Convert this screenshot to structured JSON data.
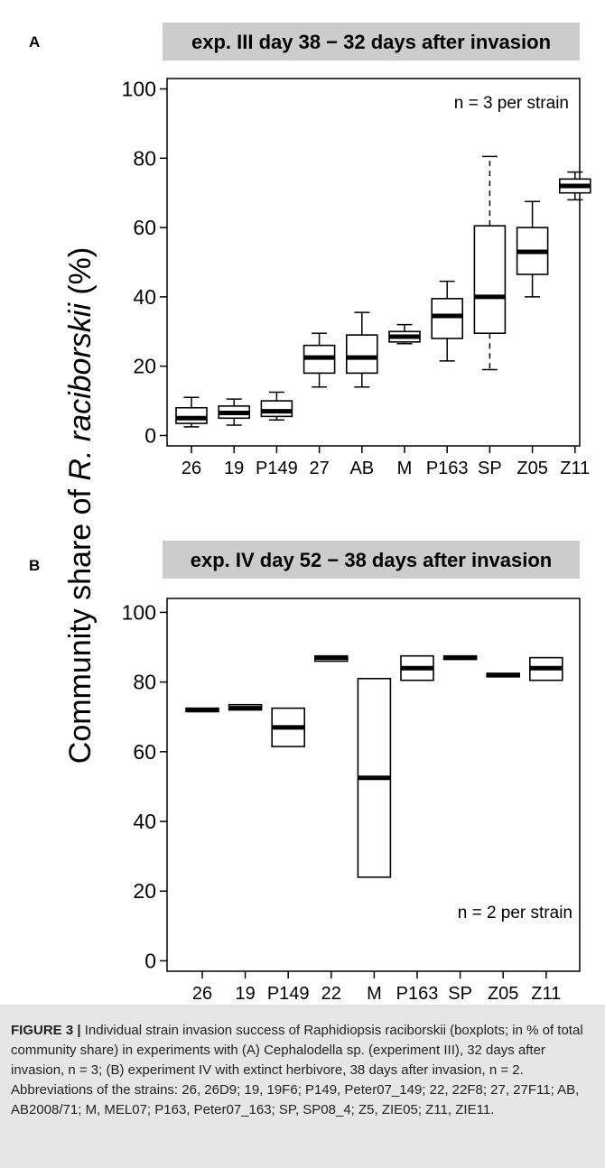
{
  "chart_data": [
    {
      "type": "boxplot",
      "panel_label": "A",
      "title": "exp. III day 38 − 32 days after invasion",
      "annotation": "n = 3 per strain",
      "ylabel": "Community share of R. raciborskii (%)",
      "ylim": [
        -3,
        103
      ],
      "yticks": [
        0,
        20,
        40,
        60,
        80,
        100
      ],
      "grid": false,
      "categories": [
        "26",
        "19",
        "P149",
        "27",
        "AB",
        "M",
        "P163",
        "SP",
        "Z05",
        "Z11"
      ],
      "boxes": [
        {
          "min": 2.5,
          "q1": 3.5,
          "median": 5,
          "q3": 8,
          "max": 11
        },
        {
          "min": 3,
          "q1": 5,
          "median": 6.5,
          "q3": 8.5,
          "max": 10.5
        },
        {
          "min": 4.5,
          "q1": 5.5,
          "median": 7,
          "q3": 10,
          "max": 12.5
        },
        {
          "min": 14,
          "q1": 18,
          "median": 22.5,
          "q3": 26,
          "max": 29.5
        },
        {
          "min": 14,
          "q1": 18,
          "median": 22.5,
          "q3": 29,
          "max": 35.5
        },
        {
          "min": 26.5,
          "q1": 27,
          "median": 28.5,
          "q3": 30,
          "max": 32
        },
        {
          "min": 21.5,
          "q1": 28,
          "median": 34.5,
          "q3": 39.5,
          "max": 44.5
        },
        {
          "min": 19,
          "q1": 29.5,
          "median": 40,
          "q3": 60.5,
          "max": 80.5,
          "dashed_whiskers": true
        },
        {
          "min": 40,
          "q1": 46.5,
          "median": 53,
          "q3": 60,
          "max": 67.5
        },
        {
          "min": 68,
          "q1": 70,
          "median": 72,
          "q3": 74,
          "max": 76
        }
      ]
    },
    {
      "type": "boxplot",
      "panel_label": "B",
      "title": "exp. IV day 52 − 38 days after invasion",
      "annotation": "n = 2 per strain",
      "ylabel": "Community share of R. raciborskii (%)",
      "ylim": [
        -3,
        104
      ],
      "yticks": [
        0,
        20,
        40,
        60,
        80,
        100
      ],
      "grid": false,
      "categories": [
        "26",
        "19",
        "P149",
        "22",
        "M",
        "P163",
        "SP",
        "Z05",
        "Z11"
      ],
      "boxes": [
        {
          "min": 71.5,
          "q1": 71.5,
          "median": 72,
          "q3": 72.5,
          "max": 72.5
        },
        {
          "min": 72,
          "q1": 72,
          "median": 72.5,
          "q3": 73.5,
          "max": 73.5
        },
        {
          "min": 61.5,
          "q1": 61.5,
          "median": 67,
          "q3": 72.5,
          "max": 72.5
        },
        {
          "min": 86,
          "q1": 86,
          "median": 87,
          "q3": 87.5,
          "max": 87.5
        },
        {
          "min": 24,
          "q1": 24,
          "median": 52.5,
          "q3": 81,
          "max": 81
        },
        {
          "min": 80.5,
          "q1": 80.5,
          "median": 84,
          "q3": 87.5,
          "max": 87.5
        },
        {
          "min": 86.5,
          "q1": 86.5,
          "median": 87,
          "q3": 87.5,
          "max": 87.5
        },
        {
          "min": 81.5,
          "q1": 81.5,
          "median": 82,
          "q3": 82.5,
          "max": 82.5
        },
        {
          "min": 80.5,
          "q1": 80.5,
          "median": 84,
          "q3": 87,
          "max": 87
        }
      ]
    }
  ],
  "y_axis_label": {
    "prefix": "Community share of ",
    "species": "R. raciborskii",
    "suffix": " (%)"
  },
  "colors": {
    "title_band": "#cccccc",
    "caption_background": "#e6e6e6",
    "box_stroke": "#000000"
  },
  "caption": {
    "label": "FIGURE 3 |",
    "text": "Individual strain invasion success of Raphidiopsis raciborskii (boxplots; in % of total community share) in experiments with (A) Cephalodella sp. (experiment III), 32 days after invasion, n = 3; (B) experiment IV with extinct herbivore, 38 days after invasion, n = 2. Abbreviations of the strains: 26, 26D9; 19, 19F6; P149, Peter07_149; 22, 22F8; 27, 27F11; AB, AB2008/71; M, MEL07; P163, Peter07_163; SP, SP08_4; Z5, ZIE05; Z11, ZIE11."
  }
}
